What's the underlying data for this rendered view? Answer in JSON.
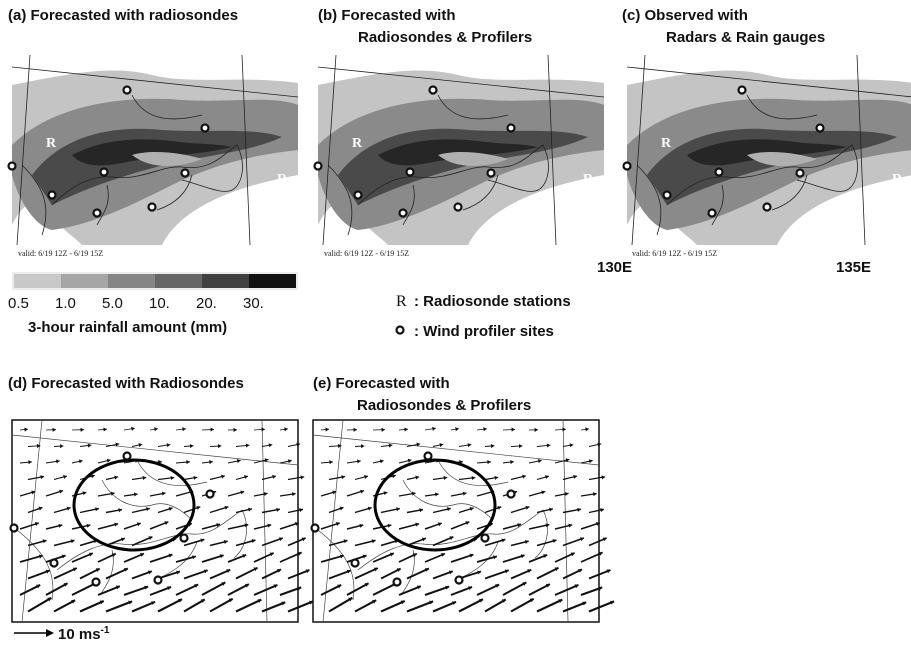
{
  "rain_panels": [
    {
      "title": [
        "(a) Forecasted with radiosondes"
      ],
      "valid": "valid: 6/19 12Z - 6/19 15Z"
    },
    {
      "title": [
        "(b) Forecasted with",
        "Radiosondes & Profilers"
      ],
      "valid": "valid: 6/19 12Z - 6/19 15Z"
    },
    {
      "title": [
        "(c) Observed with",
        "Radars & Rain gauges"
      ],
      "valid": "valid: 6/19 12Z - 6/19 15Z"
    }
  ],
  "longitudes": [
    "130E",
    "135E"
  ],
  "colorbar": {
    "labels": [
      "0.5",
      "1.0",
      "5.0",
      "10.",
      "20.",
      "30."
    ],
    "title": "3-hour rainfall amount (mm)"
  },
  "legend": {
    "radiosonde": {
      "symbol": "R",
      "text": ": Radiosonde stations"
    },
    "profiler": {
      "text": ": Wind profiler sites"
    }
  },
  "wind_panels": [
    {
      "title": [
        "(d) Forecasted with Radiosondes"
      ]
    },
    {
      "title": [
        "(e) Forecasted with",
        "Radiosondes & Profilers"
      ]
    }
  ],
  "scale": {
    "label": "10 ms",
    "exponent": "-1"
  }
}
